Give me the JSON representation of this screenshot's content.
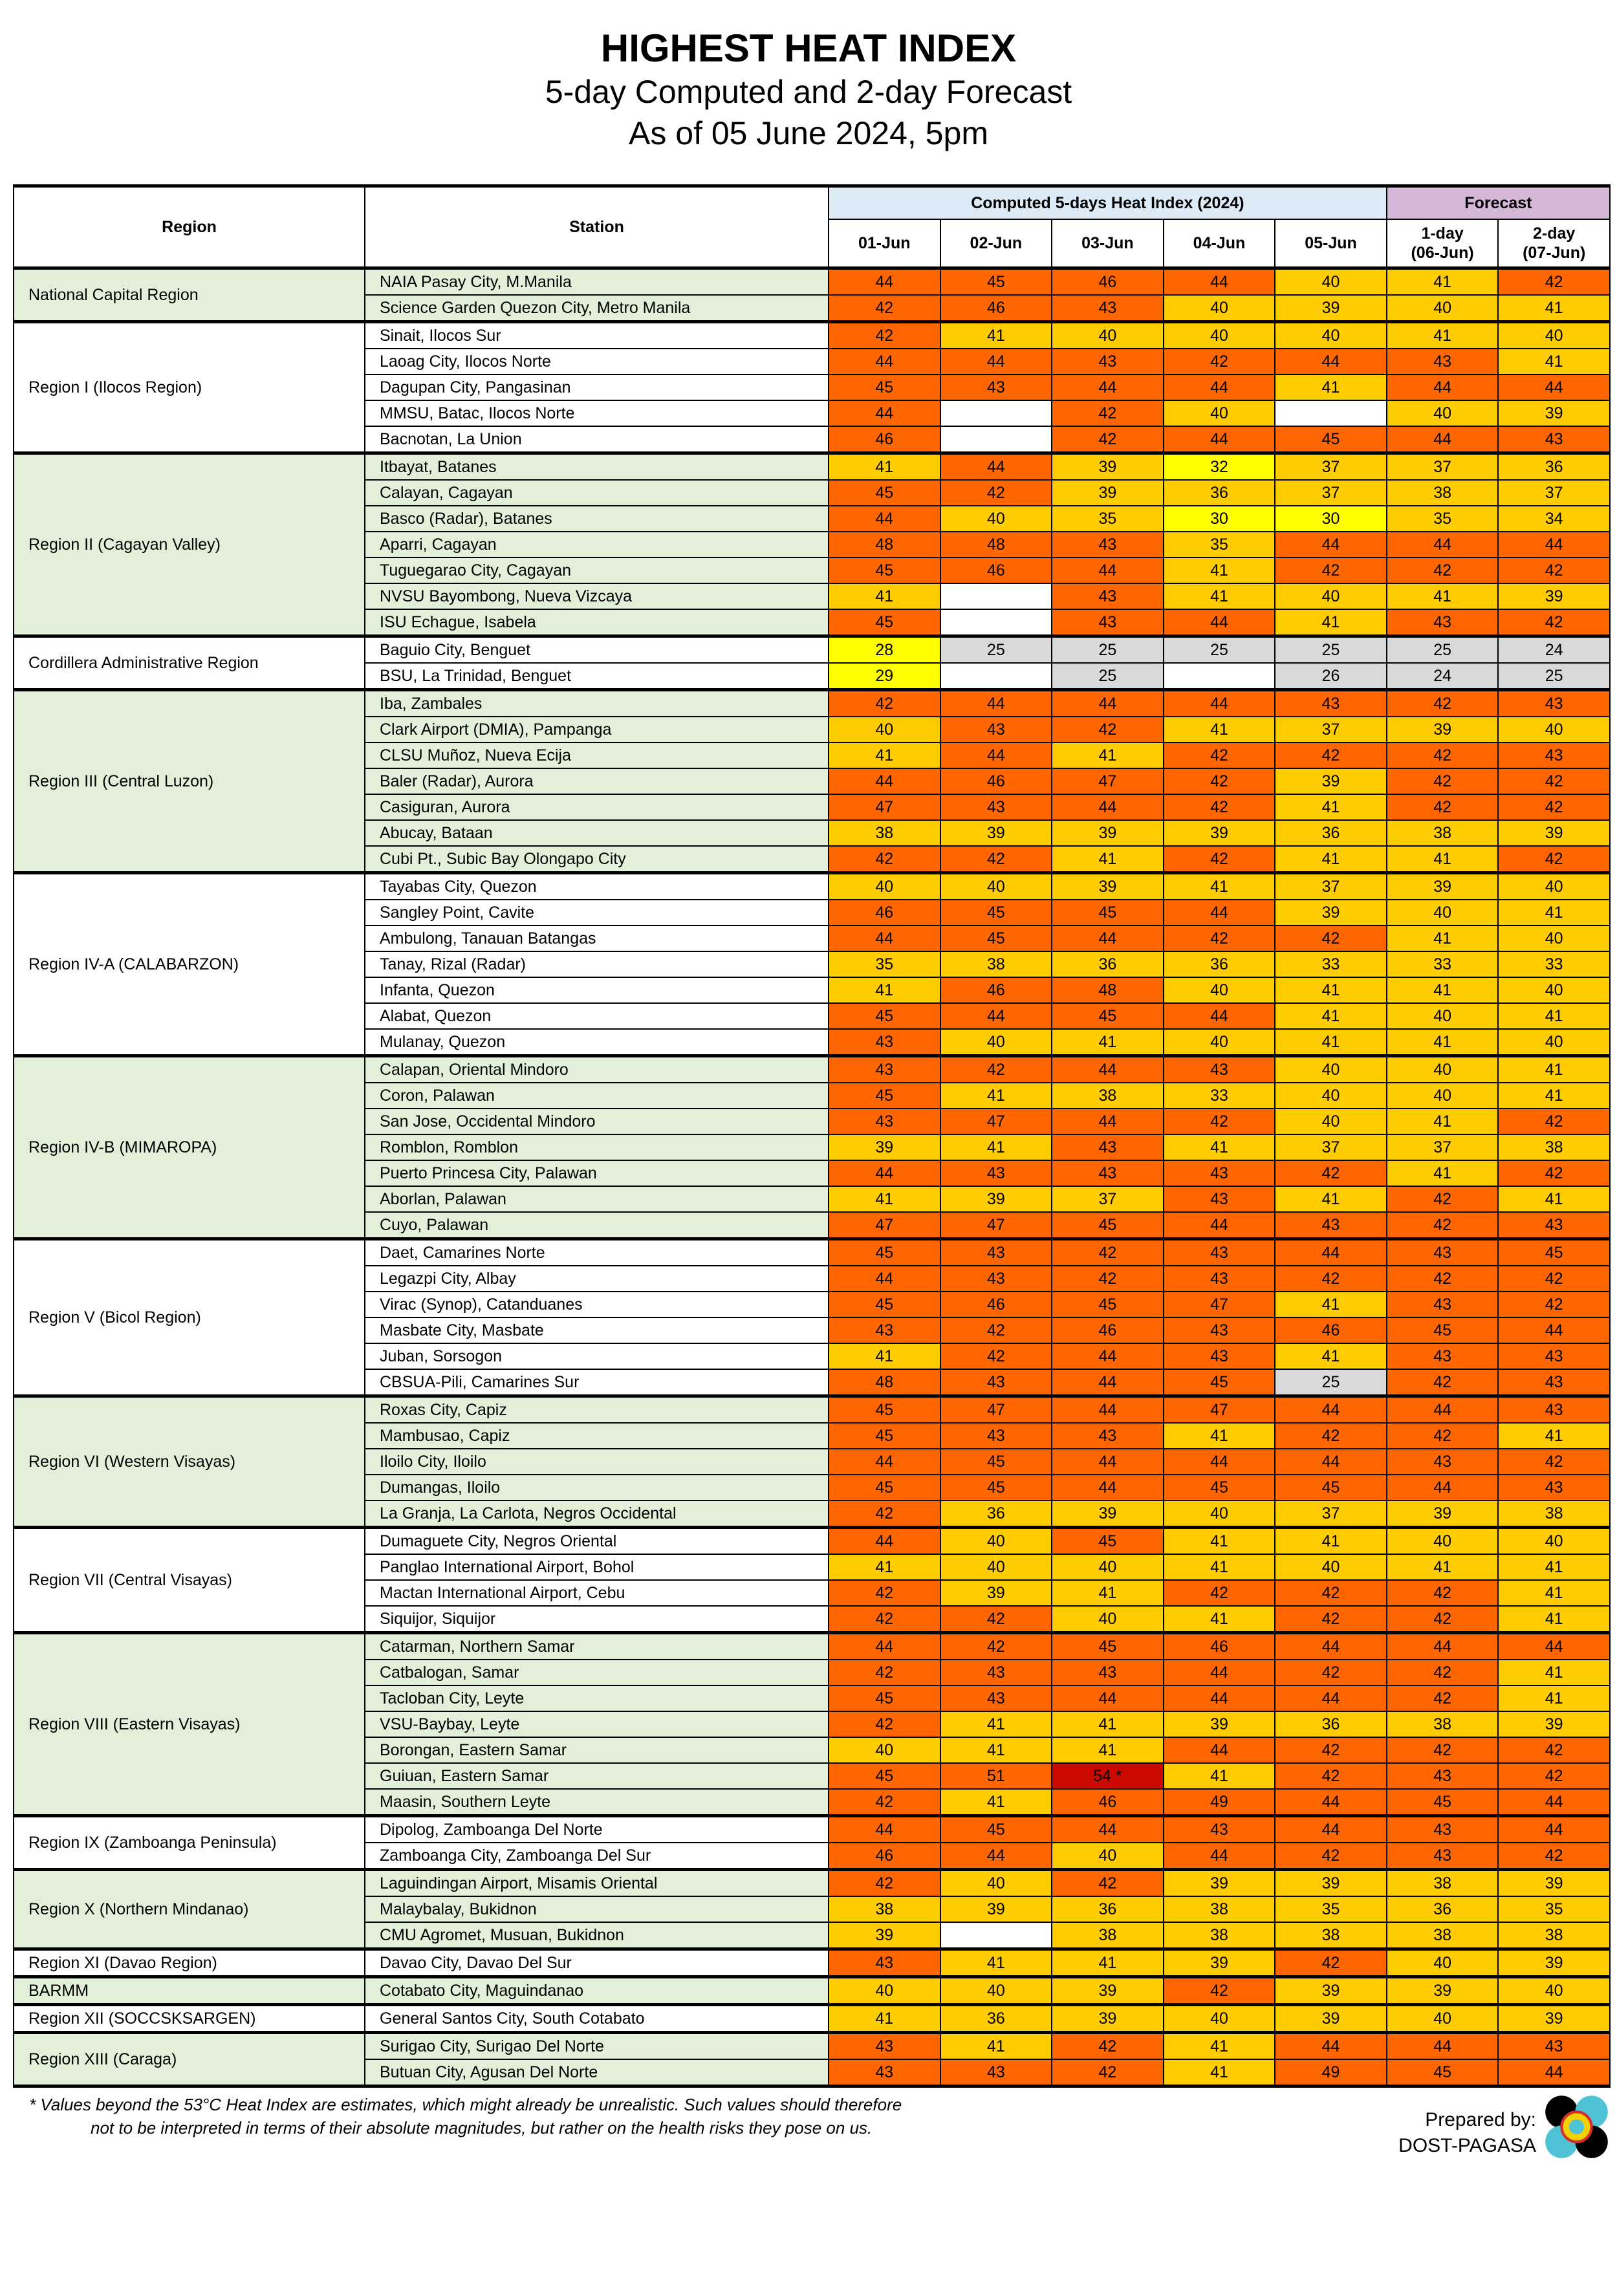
{
  "header": {
    "title": "HIGHEST HEAT INDEX",
    "subtitle": "5-day Computed and 2-day Forecast",
    "as_of": "As of 05 June 2024, 5pm"
  },
  "table": {
    "col_region": "Region",
    "col_station": "Station",
    "group_computed": "Computed 5-days Heat Index (2024)",
    "group_forecast": "Forecast",
    "dates": [
      "01-Jun",
      "02-Jun",
      "03-Jun",
      "04-Jun",
      "05-Jun"
    ],
    "forecast_cols": [
      {
        "l1": "1-day",
        "l2": "(06-Jun)"
      },
      {
        "l1": "2-day",
        "l2": "(07-Jun)"
      }
    ],
    "regions": [
      {
        "name": "National Capital Region",
        "stations": [
          {
            "name": "NAIA Pasay City, M.Manila",
            "values": [
              "44",
              "45",
              "46",
              "44",
              "40",
              "41",
              "42"
            ]
          },
          {
            "name": "Science Garden Quezon City, Metro Manila",
            "values": [
              "42",
              "46",
              "43",
              "40",
              "39",
              "40",
              "41"
            ]
          }
        ]
      },
      {
        "name": "Region I (Ilocos Region)",
        "stations": [
          {
            "name": "Sinait, Ilocos Sur",
            "values": [
              "42",
              "41",
              "40",
              "40",
              "40",
              "41",
              "40"
            ]
          },
          {
            "name": "Laoag City, Ilocos Norte",
            "values": [
              "44",
              "44",
              "43",
              "42",
              "44",
              "43",
              "41"
            ]
          },
          {
            "name": "Dagupan City, Pangasinan",
            "values": [
              "45",
              "43",
              "44",
              "44",
              "41",
              "44",
              "44"
            ]
          },
          {
            "name": "MMSU, Batac, Ilocos Norte",
            "values": [
              "44",
              "",
              "42",
              "40",
              "",
              "40",
              "39"
            ]
          },
          {
            "name": "Bacnotan, La Union",
            "values": [
              "46",
              "",
              "42",
              "44",
              "45",
              "44",
              "43"
            ]
          }
        ]
      },
      {
        "name": "Region II (Cagayan Valley)",
        "stations": [
          {
            "name": "Itbayat, Batanes",
            "values": [
              "41",
              "44",
              "39",
              "32",
              "37",
              "37",
              "36"
            ]
          },
          {
            "name": "Calayan, Cagayan",
            "values": [
              "45",
              "42",
              "39",
              "36",
              "37",
              "38",
              "37"
            ]
          },
          {
            "name": "Basco (Radar), Batanes",
            "values": [
              "44",
              "40",
              "35",
              "30",
              "30",
              "35",
              "34"
            ]
          },
          {
            "name": "Aparri, Cagayan",
            "values": [
              "48",
              "48",
              "43",
              "35",
              "44",
              "44",
              "44"
            ]
          },
          {
            "name": "Tuguegarao City, Cagayan",
            "values": [
              "45",
              "46",
              "44",
              "41",
              "42",
              "42",
              "42"
            ]
          },
          {
            "name": "NVSU Bayombong, Nueva Vizcaya",
            "values": [
              "41",
              "",
              "43",
              "41",
              "40",
              "41",
              "39"
            ]
          },
          {
            "name": "ISU Echague, Isabela",
            "values": [
              "45",
              "",
              "43",
              "44",
              "41",
              "43",
              "42"
            ]
          }
        ]
      },
      {
        "name": "Cordillera Administrative Region",
        "stations": [
          {
            "name": "Baguio City, Benguet",
            "values": [
              "28",
              "25",
              "25",
              "25",
              "25",
              "25",
              "24"
            ]
          },
          {
            "name": "BSU, La Trinidad, Benguet",
            "values": [
              "29",
              "",
              "25",
              "",
              "26",
              "24",
              "25"
            ]
          }
        ]
      },
      {
        "name": "Region III (Central Luzon)",
        "stations": [
          {
            "name": "Iba, Zambales",
            "values": [
              "42",
              "44",
              "44",
              "44",
              "43",
              "42",
              "43"
            ]
          },
          {
            "name": "Clark Airport (DMIA), Pampanga",
            "values": [
              "40",
              "43",
              "42",
              "41",
              "37",
              "39",
              "40"
            ]
          },
          {
            "name": "CLSU Muñoz, Nueva Ecija",
            "values": [
              "41",
              "44",
              "41",
              "42",
              "42",
              "42",
              "43"
            ]
          },
          {
            "name": "Baler (Radar), Aurora",
            "values": [
              "44",
              "46",
              "47",
              "42",
              "39",
              "42",
              "42"
            ]
          },
          {
            "name": "Casiguran, Aurora",
            "values": [
              "47",
              "43",
              "44",
              "42",
              "41",
              "42",
              "42"
            ]
          },
          {
            "name": "Abucay, Bataan",
            "values": [
              "38",
              "39",
              "39",
              "39",
              "36",
              "38",
              "39"
            ]
          },
          {
            "name": "Cubi Pt., Subic Bay Olongapo City",
            "values": [
              "42",
              "42",
              "41",
              "42",
              "41",
              "41",
              "42"
            ]
          }
        ]
      },
      {
        "name": "Region IV-A (CALABARZON)",
        "stations": [
          {
            "name": "Tayabas City, Quezon",
            "values": [
              "40",
              "40",
              "39",
              "41",
              "37",
              "39",
              "40"
            ]
          },
          {
            "name": "Sangley Point, Cavite",
            "values": [
              "46",
              "45",
              "45",
              "44",
              "39",
              "40",
              "41"
            ]
          },
          {
            "name": "Ambulong, Tanauan Batangas",
            "values": [
              "44",
              "45",
              "44",
              "42",
              "42",
              "41",
              "40"
            ]
          },
          {
            "name": "Tanay, Rizal (Radar)",
            "values": [
              "35",
              "38",
              "36",
              "36",
              "33",
              "33",
              "33"
            ]
          },
          {
            "name": "Infanta, Quezon",
            "values": [
              "41",
              "46",
              "48",
              "40",
              "41",
              "41",
              "40"
            ]
          },
          {
            "name": "Alabat, Quezon",
            "values": [
              "45",
              "44",
              "45",
              "44",
              "41",
              "40",
              "41"
            ]
          },
          {
            "name": "Mulanay, Quezon",
            "values": [
              "43",
              "40",
              "41",
              "40",
              "41",
              "41",
              "40"
            ]
          }
        ]
      },
      {
        "name": "Region IV-B (MIMAROPA)",
        "stations": [
          {
            "name": "Calapan, Oriental Mindoro",
            "values": [
              "43",
              "42",
              "44",
              "43",
              "40",
              "40",
              "41"
            ]
          },
          {
            "name": "Coron, Palawan",
            "values": [
              "45",
              "41",
              "38",
              "33",
              "40",
              "40",
              "41"
            ]
          },
          {
            "name": "San Jose, Occidental Mindoro",
            "values": [
              "43",
              "47",
              "44",
              "42",
              "40",
              "41",
              "42"
            ]
          },
          {
            "name": "Romblon, Romblon",
            "values": [
              "39",
              "41",
              "43",
              "41",
              "37",
              "37",
              "38"
            ]
          },
          {
            "name": "Puerto Princesa City, Palawan",
            "values": [
              "44",
              "43",
              "43",
              "43",
              "42",
              "41",
              "42"
            ]
          },
          {
            "name": "Aborlan, Palawan",
            "values": [
              "41",
              "39",
              "37",
              "43",
              "41",
              "42",
              "41"
            ]
          },
          {
            "name": "Cuyo, Palawan",
            "values": [
              "47",
              "47",
              "45",
              "44",
              "43",
              "42",
              "43"
            ]
          }
        ]
      },
      {
        "name": "Region V (Bicol Region)",
        "stations": [
          {
            "name": "Daet, Camarines Norte",
            "values": [
              "45",
              "43",
              "42",
              "43",
              "44",
              "43",
              "45"
            ]
          },
          {
            "name": "Legazpi City, Albay",
            "values": [
              "44",
              "43",
              "42",
              "43",
              "42",
              "42",
              "42"
            ]
          },
          {
            "name": "Virac (Synop), Catanduanes",
            "values": [
              "45",
              "46",
              "45",
              "47",
              "41",
              "43",
              "42"
            ]
          },
          {
            "name": "Masbate City, Masbate",
            "values": [
              "43",
              "42",
              "46",
              "43",
              "46",
              "45",
              "44"
            ]
          },
          {
            "name": "Juban, Sorsogon",
            "values": [
              "41",
              "42",
              "44",
              "43",
              "41",
              "43",
              "43"
            ]
          },
          {
            "name": "CBSUA-Pili, Camarines Sur",
            "values": [
              "48",
              "43",
              "44",
              "45",
              "25",
              "42",
              "43"
            ]
          }
        ]
      },
      {
        "name": "Region VI (Western Visayas)",
        "stations": [
          {
            "name": "Roxas City, Capiz",
            "values": [
              "45",
              "47",
              "44",
              "47",
              "44",
              "44",
              "43"
            ]
          },
          {
            "name": "Mambusao, Capiz",
            "values": [
              "45",
              "43",
              "43",
              "41",
              "42",
              "42",
              "41"
            ]
          },
          {
            "name": "Iloilo City, Iloilo",
            "values": [
              "44",
              "45",
              "44",
              "44",
              "44",
              "43",
              "42"
            ]
          },
          {
            "name": "Dumangas, Iloilo",
            "values": [
              "45",
              "45",
              "44",
              "45",
              "45",
              "44",
              "43"
            ]
          },
          {
            "name": "La Granja, La Carlota, Negros Occidental",
            "values": [
              "42",
              "36",
              "39",
              "40",
              "37",
              "39",
              "38"
            ]
          }
        ]
      },
      {
        "name": "Region VII (Central Visayas)",
        "stations": [
          {
            "name": "Dumaguete City, Negros Oriental",
            "values": [
              "44",
              "40",
              "45",
              "41",
              "41",
              "40",
              "40"
            ]
          },
          {
            "name": "Panglao International Airport, Bohol",
            "values": [
              "41",
              "40",
              "40",
              "41",
              "40",
              "41",
              "41"
            ]
          },
          {
            "name": "Mactan International Airport, Cebu",
            "values": [
              "42",
              "39",
              "41",
              "42",
              "42",
              "42",
              "41"
            ]
          },
          {
            "name": "Siquijor, Siquijor",
            "values": [
              "42",
              "42",
              "40",
              "41",
              "42",
              "42",
              "41"
            ]
          }
        ]
      },
      {
        "name": "Region VIII (Eastern Visayas)",
        "stations": [
          {
            "name": "Catarman, Northern Samar",
            "values": [
              "44",
              "42",
              "45",
              "46",
              "44",
              "44",
              "44"
            ]
          },
          {
            "name": "Catbalogan, Samar",
            "values": [
              "42",
              "43",
              "43",
              "44",
              "42",
              "42",
              "41"
            ]
          },
          {
            "name": "Tacloban City, Leyte",
            "values": [
              "45",
              "43",
              "44",
              "44",
              "44",
              "42",
              "41"
            ]
          },
          {
            "name": "VSU-Baybay, Leyte",
            "values": [
              "42",
              "41",
              "41",
              "39",
              "36",
              "38",
              "39"
            ]
          },
          {
            "name": "Borongan, Eastern Samar",
            "values": [
              "40",
              "41",
              "41",
              "44",
              "42",
              "42",
              "42"
            ]
          },
          {
            "name": "Guiuan, Eastern Samar",
            "values": [
              "45",
              "51",
              "54 *",
              "41",
              "42",
              "43",
              "42"
            ]
          },
          {
            "name": "Maasin, Southern Leyte",
            "values": [
              "42",
              "41",
              "46",
              "49",
              "44",
              "45",
              "44"
            ]
          }
        ]
      },
      {
        "name": "Region IX (Zamboanga Peninsula)",
        "stations": [
          {
            "name": "Dipolog, Zamboanga Del Norte",
            "values": [
              "44",
              "45",
              "44",
              "43",
              "44",
              "43",
              "44"
            ]
          },
          {
            "name": "Zamboanga City, Zamboanga Del Sur",
            "values": [
              "46",
              "44",
              "40",
              "44",
              "42",
              "43",
              "42"
            ]
          }
        ]
      },
      {
        "name": "Region X (Northern Mindanao)",
        "stations": [
          {
            "name": "Laguindingan Airport, Misamis Oriental",
            "values": [
              "42",
              "40",
              "42",
              "39",
              "39",
              "38",
              "39"
            ]
          },
          {
            "name": "Malaybalay, Bukidnon",
            "values": [
              "38",
              "39",
              "36",
              "38",
              "35",
              "36",
              "35"
            ]
          },
          {
            "name": "CMU Agromet, Musuan, Bukidnon",
            "values": [
              "39",
              "",
              "38",
              "38",
              "38",
              "38",
              "38"
            ]
          }
        ]
      },
      {
        "name": "Region XI (Davao Region)",
        "stations": [
          {
            "name": "Davao City, Davao Del Sur",
            "values": [
              "43",
              "41",
              "41",
              "39",
              "42",
              "40",
              "39"
            ]
          }
        ]
      },
      {
        "name": "BARMM",
        "stations": [
          {
            "name": "Cotabato City, Maguindanao",
            "values": [
              "40",
              "40",
              "39",
              "42",
              "39",
              "39",
              "40"
            ]
          }
        ]
      },
      {
        "name": "Region XII (SOCCSKSARGEN)",
        "stations": [
          {
            "name": "General Santos City, South Cotabato",
            "values": [
              "41",
              "36",
              "39",
              "40",
              "39",
              "40",
              "39"
            ]
          }
        ]
      },
      {
        "name": "Region XIII (Caraga)",
        "stations": [
          {
            "name": "Surigao City, Surigao Del Norte",
            "values": [
              "43",
              "41",
              "42",
              "41",
              "44",
              "44",
              "43"
            ]
          },
          {
            "name": "Butuan City, Agusan Del Norte",
            "values": [
              "43",
              "43",
              "42",
              "41",
              "49",
              "45",
              "44"
            ]
          }
        ]
      }
    ]
  },
  "colors": {
    "below_27": "#d9d9d9",
    "27_to_32": "#ffff00",
    "33_to_41": "#ffcc00",
    "42_to_51": "#ff6600",
    "52_and_above": "#cc0a00",
    "region_alt_bg": "#e2f0d9",
    "computed_header_bg": "#ddebf7",
    "forecast_header_bg": "#d5b8d8"
  },
  "footnote": {
    "line1": "* Values beyond the 53°C Heat Index are estimates, which might already be unrealistic. Such values should therefore",
    "line2": "not to be interpreted in terms of their absolute magnitudes, but rather on the health risks they pose on us."
  },
  "credit": {
    "label": "Prepared by:",
    "org": "DOST-PAGASA"
  },
  "logo": {
    "icon": "pagasa-logo"
  }
}
